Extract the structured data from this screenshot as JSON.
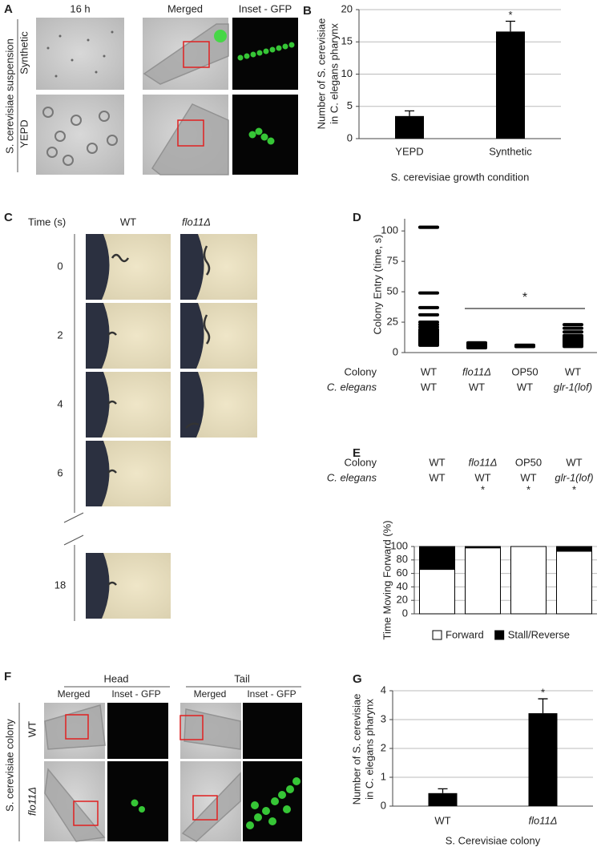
{
  "panels": {
    "A": {
      "label": "A",
      "col_headers": [
        "16 h",
        "Merged",
        "Inset - GFP"
      ],
      "row_headers": [
        "Synthetic",
        "YEPD"
      ],
      "side_label": "S. cerevisiae suspension"
    },
    "C": {
      "label": "C",
      "time_header": "Time (s)",
      "col_headers": [
        "WT",
        "flo11Δ"
      ],
      "times": [
        0,
        2,
        4,
        6,
        18
      ]
    },
    "F": {
      "label": "F",
      "groups": [
        "Head",
        "Tail"
      ],
      "col_headers": [
        "Merged",
        "Inset - GFP",
        "Merged",
        "Inset - GFP"
      ],
      "row_headers": [
        "WT",
        "flo11Δ"
      ],
      "side_label": "S. cerevisiae colony"
    }
  },
  "chart_data": [
    {
      "type": "bar",
      "panel": "B",
      "ylabel": [
        "Number of S. cerevisiae",
        "in C. elegans pharynx"
      ],
      "xlabel": "S. cerevisiae growth condition",
      "categories": [
        "YEPD",
        "Synthetic"
      ],
      "values": [
        3.5,
        16.6
      ],
      "errors": [
        0.8,
        1.6
      ],
      "annotations": [
        null,
        "*"
      ],
      "color": "#000000",
      "ylim": [
        0,
        20
      ],
      "yticks": [
        0,
        5,
        10,
        15,
        20
      ],
      "grid": true
    },
    {
      "type": "dot",
      "panel": "D",
      "ylabel": "Colony Entry (time, s)",
      "row_labels": [
        "Colony",
        "C. elegans"
      ],
      "category_rows": [
        [
          "WT",
          "flo11Δ",
          "OP50",
          "WT"
        ],
        [
          "WT",
          "WT",
          "WT",
          "glr-1(lof)"
        ]
      ],
      "values": [
        [
          103,
          103,
          49,
          37,
          31,
          25,
          23,
          21,
          19,
          18,
          17,
          16,
          16,
          15,
          15,
          14,
          14,
          13,
          13,
          12,
          12,
          11,
          11,
          10,
          10,
          9,
          9,
          8,
          8,
          7,
          7,
          6
        ],
        [
          8,
          8,
          7,
          7,
          6,
          6,
          6,
          5,
          5,
          5,
          5,
          5,
          4,
          4,
          4
        ],
        [
          6,
          6,
          5,
          5,
          5
        ],
        [
          23,
          20,
          17,
          14,
          13,
          12,
          11,
          11,
          10,
          10,
          9,
          9,
          8,
          8,
          7,
          7,
          6,
          6,
          5
        ]
      ],
      "significance_label": "*",
      "color": "#000000",
      "ylim": [
        0,
        110
      ],
      "yticks": [
        0,
        25,
        50,
        75,
        100
      ],
      "grid": false
    },
    {
      "type": "stacked_bar",
      "panel": "E",
      "ylabel": "Time Moving Forward (%)",
      "row_labels": [
        "Colony",
        "C. elegans"
      ],
      "category_rows": [
        [
          "WT",
          "flo11Δ",
          "OP50",
          "WT"
        ],
        [
          "WT",
          "WT",
          "WT",
          "glr-1(lof)"
        ]
      ],
      "series": [
        {
          "name": "Forward",
          "color": "#ffffff",
          "values": [
            66,
            98,
            100,
            93
          ]
        },
        {
          "name": "Stall/Reverse",
          "color": "#000000",
          "values": [
            34,
            2,
            0,
            7
          ]
        }
      ],
      "annotations": [
        null,
        "*",
        "*",
        "*"
      ],
      "ylim": [
        0,
        100
      ],
      "yticks": [
        0,
        20,
        40,
        60,
        80,
        100
      ],
      "grid": true,
      "legend": "bottom"
    },
    {
      "type": "bar",
      "panel": "G",
      "ylabel": [
        "Number of S. cerevisiae",
        "in C. elegans pharynx"
      ],
      "xlabel": "S. Cerevisiae colony",
      "categories": [
        "WT",
        "flo11Δ"
      ],
      "values": [
        0.45,
        3.22
      ],
      "errors": [
        0.15,
        0.5
      ],
      "annotations": [
        null,
        "*"
      ],
      "color": "#000000",
      "ylim": [
        0,
        4
      ],
      "yticks": [
        0,
        1,
        2,
        3,
        4
      ],
      "grid": true
    }
  ]
}
